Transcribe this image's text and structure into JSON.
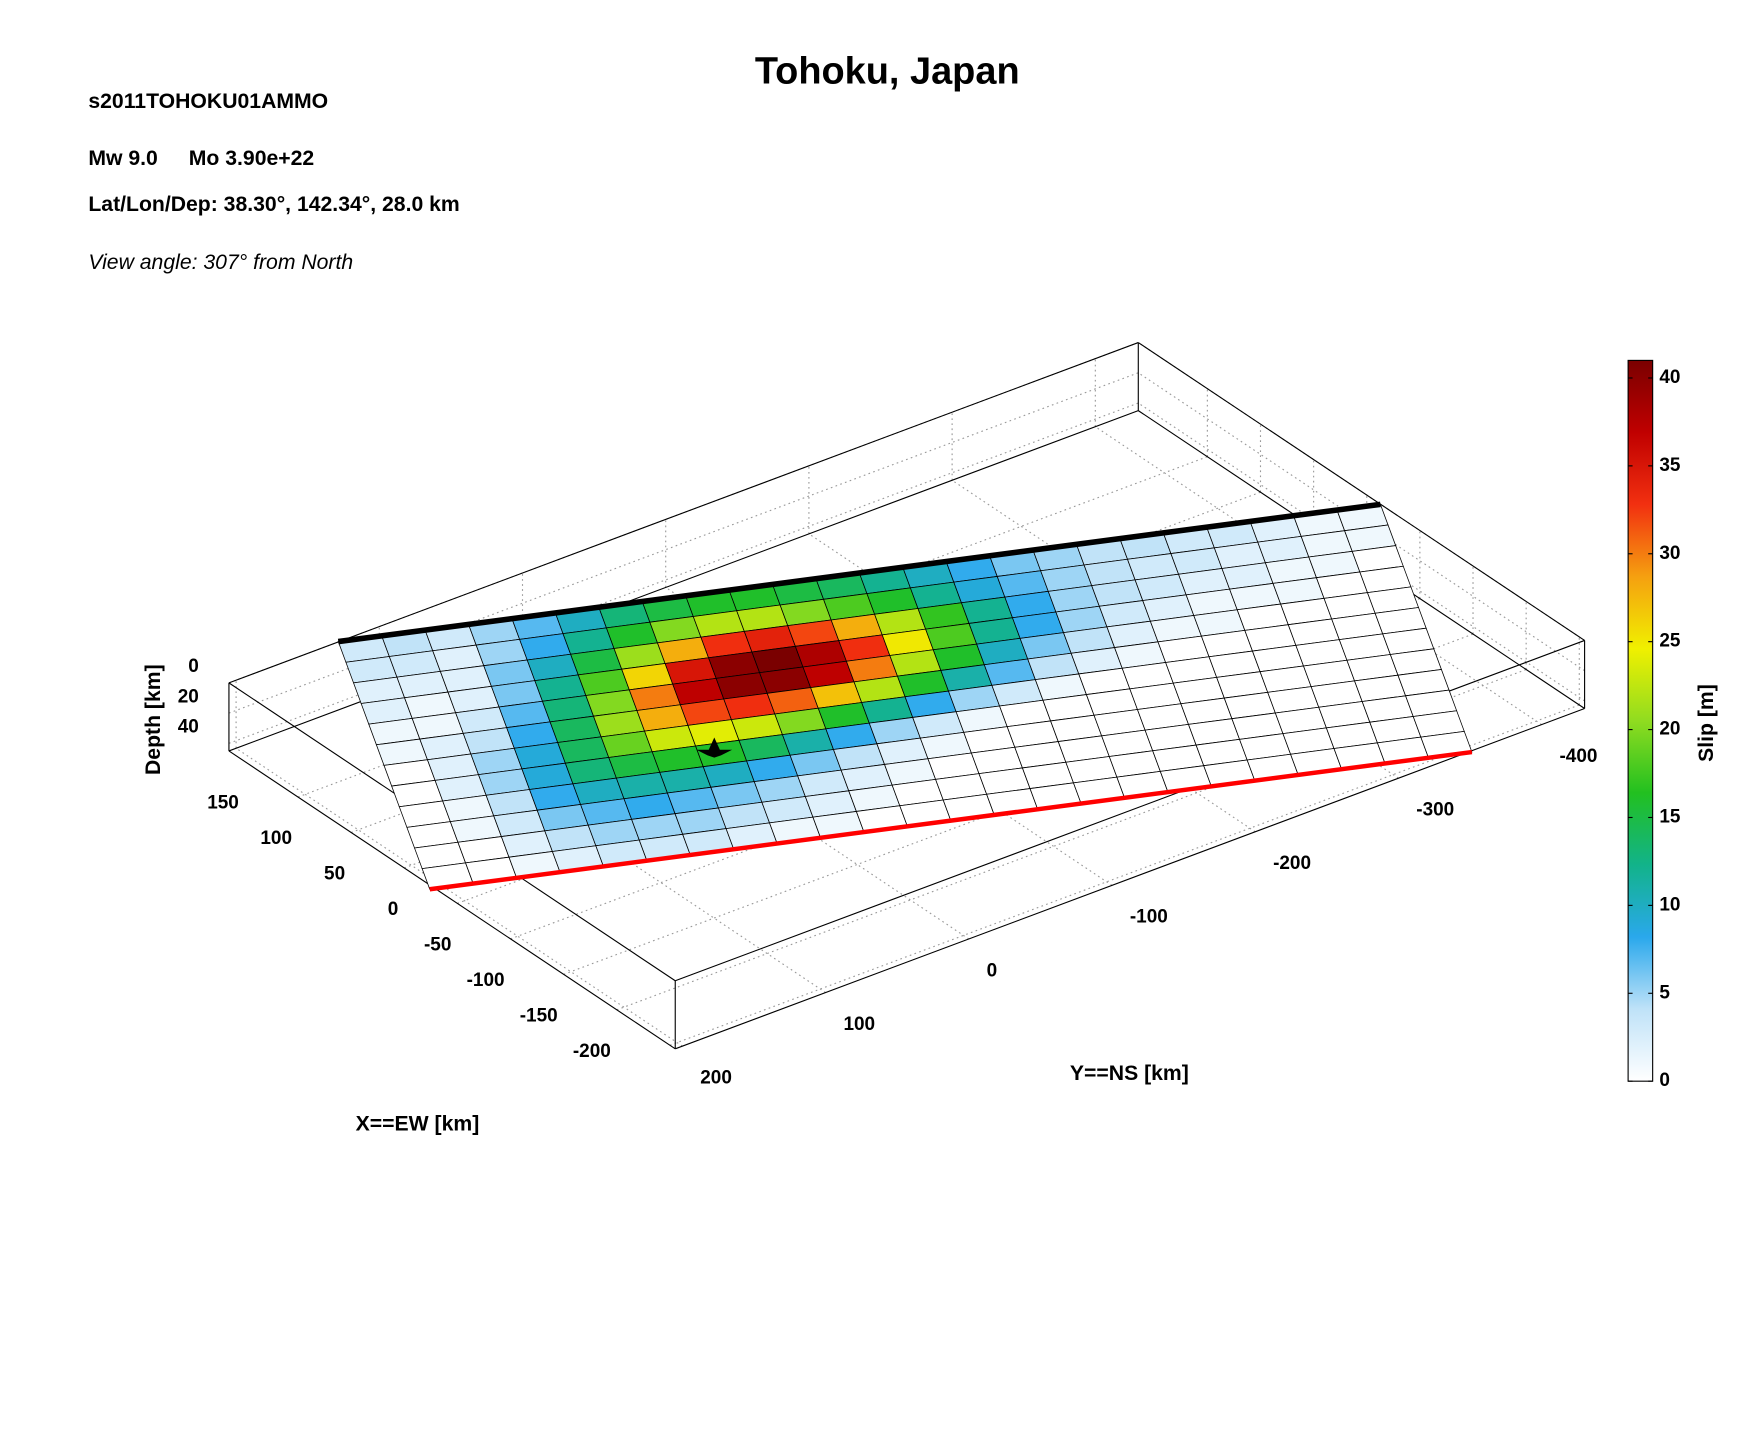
{
  "chart_data": {
    "type": "heatmap",
    "title": "Tohoku, Japan",
    "event_id": "s2011TOHOKU01AMMO",
    "magnitude": "Mw 9.0",
    "moment": "Mo 3.90e+22",
    "location": "Lat/Lon/Dep: 38.30°, 142.34°, 28.0 km",
    "view_angle": "View angle: 307° from North",
    "xlabel": "X==EW [km]",
    "ylabel": "Y==NS [km]",
    "zlabel": "Depth [km]",
    "colorbar_label": "Slip [m]",
    "xlim": [
      -205,
      215
    ],
    "xticks": [
      -200,
      -150,
      -100,
      -50,
      0,
      50,
      100,
      150
    ],
    "ylim": [
      205,
      -430
    ],
    "yticks": [
      200,
      100,
      0,
      -100,
      -200,
      -300,
      -400
    ],
    "zlim": [
      0,
      45
    ],
    "zticks": [
      0,
      20,
      40
    ],
    "clim": [
      0,
      41
    ],
    "cticks": [
      0,
      5,
      10,
      15,
      20,
      25,
      30,
      35,
      40
    ],
    "colormap": [
      "#ffffff",
      "#bfe2f8",
      "#2aa8ec",
      "#12b38a",
      "#22c020",
      "#90dc20",
      "#f0f000",
      "#f5a010",
      "#f23010",
      "#c00000",
      "#7a0000"
    ],
    "grid": true,
    "z": [
      [
        3,
        4,
        3,
        5,
        7,
        10,
        13,
        15,
        16,
        16,
        15,
        14,
        12,
        10,
        8,
        6,
        5,
        4,
        4,
        3,
        3,
        2,
        1,
        1
      ],
      [
        3,
        3,
        2,
        5,
        8,
        12,
        16,
        20,
        22,
        22,
        20,
        18,
        16,
        12,
        9,
        7,
        5,
        4,
        3,
        3,
        2,
        2,
        1,
        1
      ],
      [
        2,
        2,
        2,
        6,
        10,
        15,
        21,
        28,
        33,
        34,
        32,
        28,
        22,
        17,
        12,
        8,
        5,
        4,
        3,
        2,
        2,
        1,
        1,
        0
      ],
      [
        2,
        1,
        2,
        6,
        12,
        18,
        26,
        35,
        40,
        41,
        38,
        33,
        25,
        18,
        12,
        8,
        5,
        3,
        2,
        1,
        1,
        1,
        0,
        0
      ],
      [
        1,
        1,
        3,
        7,
        13,
        20,
        30,
        37,
        40,
        40,
        37,
        30,
        22,
        16,
        10,
        6,
        4,
        2,
        1,
        1,
        0,
        0,
        0,
        0
      ],
      [
        1,
        2,
        4,
        8,
        14,
        21,
        28,
        32,
        33,
        31,
        27,
        22,
        16,
        11,
        7,
        4,
        2,
        1,
        0,
        0,
        0,
        0,
        0,
        0
      ],
      [
        0,
        2,
        5,
        9,
        14,
        19,
        23,
        24,
        23,
        20,
        16,
        12,
        8,
        5,
        3,
        1,
        0,
        0,
        0,
        0,
        0,
        0,
        0,
        0
      ],
      [
        0,
        2,
        5,
        9,
        13,
        15,
        16,
        16,
        14,
        11,
        8,
        5,
        3,
        1,
        0,
        0,
        0,
        0,
        0,
        0,
        0,
        0,
        0,
        0
      ],
      [
        0,
        1,
        4,
        8,
        10,
        11,
        11,
        10,
        8,
        6,
        4,
        2,
        1,
        0,
        0,
        0,
        0,
        0,
        0,
        0,
        0,
        0,
        0,
        0
      ],
      [
        0,
        1,
        3,
        6,
        7,
        8,
        7,
        6,
        5,
        3,
        2,
        1,
        0,
        0,
        0,
        0,
        0,
        0,
        0,
        0,
        0,
        0,
        0,
        0
      ],
      [
        0,
        0,
        2,
        4,
        5,
        5,
        5,
        4,
        3,
        2,
        1,
        0,
        0,
        0,
        0,
        0,
        0,
        0,
        0,
        0,
        0,
        0,
        0,
        0
      ],
      [
        0,
        0,
        1,
        2,
        3,
        3,
        3,
        2,
        1,
        1,
        0,
        0,
        0,
        0,
        0,
        0,
        0,
        0,
        0,
        0,
        0,
        0,
        0,
        0
      ]
    ]
  }
}
